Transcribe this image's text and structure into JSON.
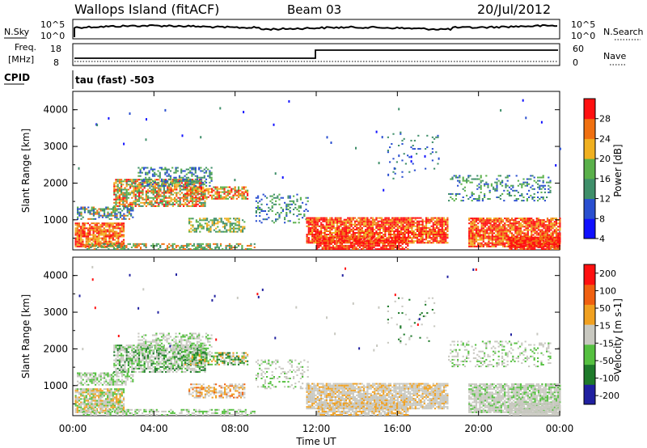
{
  "header": {
    "site": "Wallops Island (fitACF)",
    "beam": "Beam 03",
    "date": "20/Jul/2012"
  },
  "noise_panel": {
    "left_label": "N.Sky",
    "right_label": "N.Search",
    "left_ticks": [
      "10^5",
      "10^0"
    ],
    "right_ticks": [
      "10^5",
      "10^0"
    ]
  },
  "freq_panel": {
    "left_label_1": "Freq.",
    "left_label_2": "[MHz]",
    "right_label": "Nave",
    "left_ticks": [
      "18",
      "8"
    ],
    "right_ticks": [
      "60",
      "0"
    ]
  },
  "cpid": {
    "label": "CPID",
    "value": "tau (fast) -503"
  },
  "colors": {
    "power": [
      "#1010ff",
      "#2a4fd0",
      "#3f8f6a",
      "#5ab04a",
      "#f0b020",
      "#f07010",
      "#ff1010"
    ],
    "velocity": [
      "#2020a0",
      "#1e7a2a",
      "#55c040",
      "#c8c8c0",
      "#f0a020",
      "#f06010",
      "#ff1010"
    ]
  },
  "chart_data": [
    {
      "type": "heatmap",
      "title": "Power",
      "ylabel": "Slant Range [km]",
      "xlabel": "Time UT",
      "ylim": [
        180,
        4500
      ],
      "yticks": [
        "4000",
        "3000",
        "2000",
        "1000"
      ],
      "xticks": [
        "00:00",
        "04:00",
        "08:00",
        "12:00",
        "16:00",
        "20:00",
        "00:00"
      ],
      "colorbar_label": "Power [dB]",
      "colorbar_ticks": [
        "28",
        "24",
        "20",
        "16",
        "12",
        "8",
        "4"
      ]
    },
    {
      "type": "heatmap",
      "title": "Velocity",
      "ylabel": "Slant Range [km]",
      "xlabel": "Time UT",
      "ylim": [
        180,
        4500
      ],
      "yticks": [
        "4000",
        "3000",
        "2000",
        "1000"
      ],
      "xticks": [
        "00:00",
        "04:00",
        "08:00",
        "12:00",
        "16:00",
        "20:00",
        "00:00"
      ],
      "colorbar_label": "Velocity [m s-1]",
      "colorbar_ticks": [
        "200",
        "100",
        "50",
        "15",
        "-15",
        "-50",
        "-100",
        "-200"
      ]
    }
  ]
}
